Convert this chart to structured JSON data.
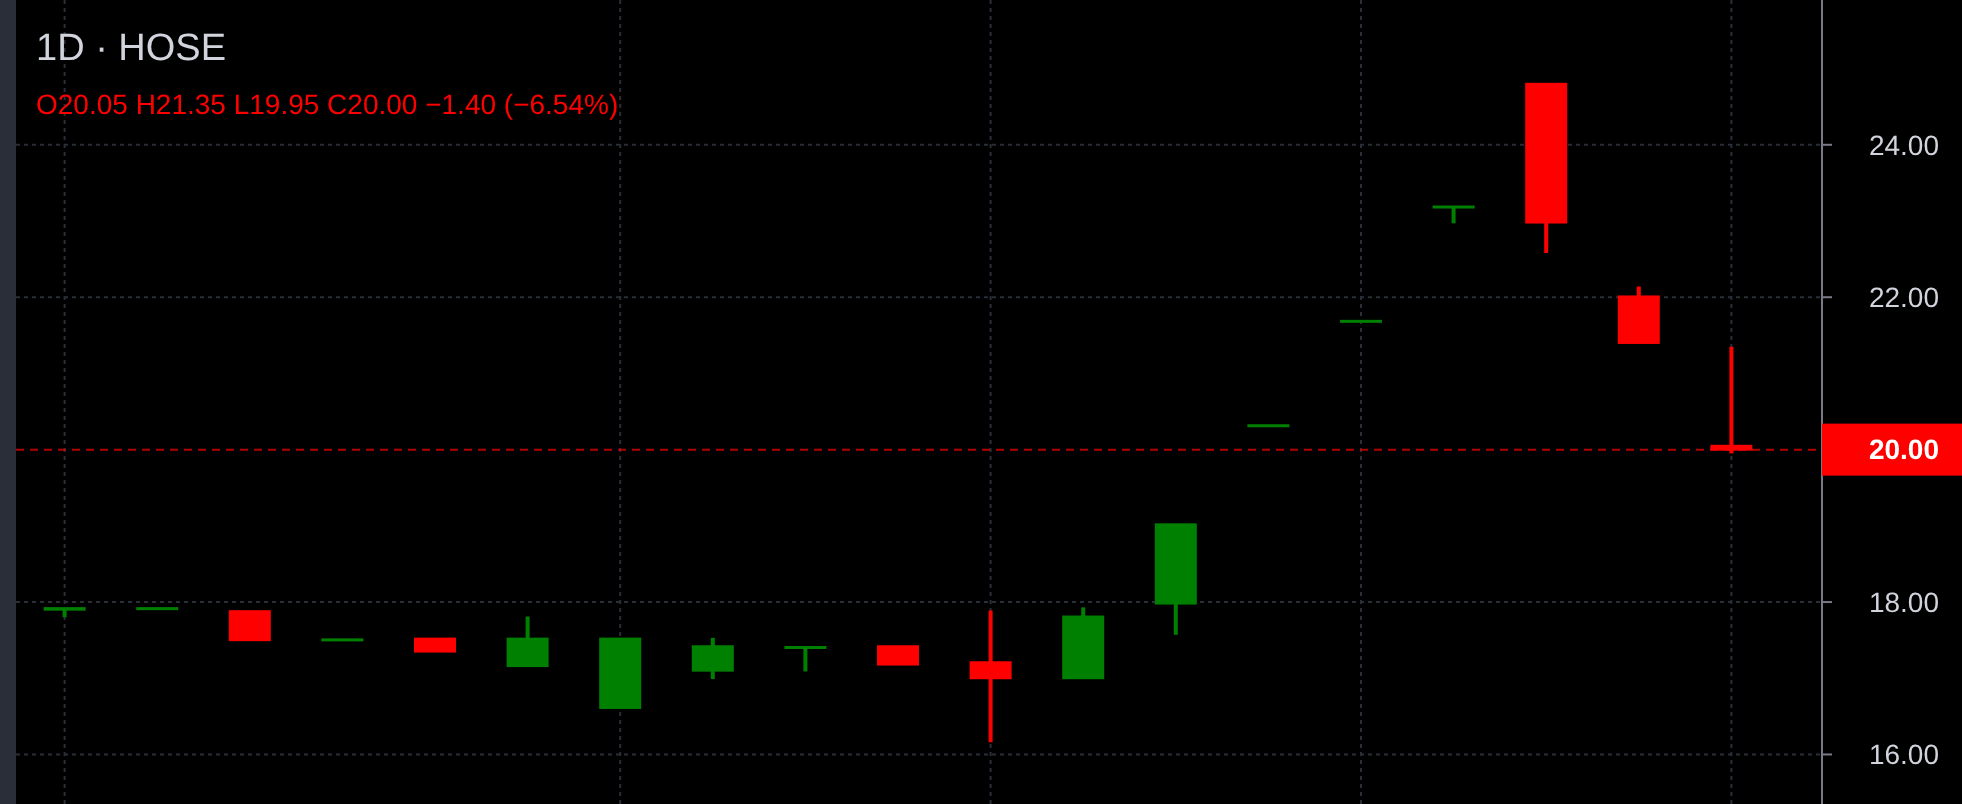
{
  "chart_data": {
    "type": "candlestick",
    "title": "1D · HOSE",
    "subtitle": "O20.05  H21.35  L19.95  C20.00  −1.40 (−6.54%)",
    "categories": [
      null,
      null,
      null,
      null,
      null,
      null,
      null,
      null,
      null,
      null,
      null,
      null,
      null,
      null,
      null,
      null,
      null,
      null,
      null
    ],
    "ohlc": [
      [
        17.9,
        17.92,
        17.8,
        17.92
      ],
      [
        17.92,
        17.92,
        17.92,
        17.92
      ],
      [
        17.88,
        17.88,
        17.5,
        17.5
      ],
      [
        17.51,
        17.51,
        17.51,
        17.51
      ],
      [
        17.52,
        17.52,
        17.35,
        17.35
      ],
      [
        17.16,
        17.81,
        17.16,
        17.52
      ],
      [
        16.61,
        17.52,
        16.61,
        17.52
      ],
      [
        17.1,
        17.53,
        16.99,
        17.42
      ],
      [
        17.4,
        17.41,
        17.09,
        17.41
      ],
      [
        17.42,
        17.42,
        17.18,
        17.18
      ],
      [
        17.21,
        17.89,
        16.16,
        17.0
      ],
      [
        17.0,
        17.93,
        17.0,
        17.81
      ],
      [
        17.98,
        19.02,
        17.57,
        19.02
      ],
      [
        20.32,
        20.32,
        20.32,
        20.32
      ],
      [
        21.69,
        21.69,
        21.69,
        21.69
      ],
      [
        23.18,
        23.19,
        22.97,
        23.19
      ],
      [
        24.8,
        24.8,
        22.58,
        22.98
      ],
      [
        22.01,
        22.14,
        21.4,
        21.4
      ],
      [
        20.05,
        21.35,
        19.95,
        20.0
      ]
    ],
    "colors": [
      "#008000",
      "#008000",
      "#ff0000",
      "#008000",
      "#ff0000",
      "#008000",
      "#008000",
      "#008000",
      "#008000",
      "#ff0000",
      "#ff0000",
      "#008000",
      "#008000",
      "#008000",
      "#008000",
      "#008000",
      "#ff0000",
      "#ff0000",
      "#ff0000"
    ],
    "ylim": [
      15.35,
      25.9
    ],
    "yticks": [
      {
        "value": 16,
        "label": "16.00"
      },
      {
        "value": 18,
        "label": "18.00"
      },
      {
        "value": 22,
        "label": "22.00"
      },
      {
        "value": 24,
        "label": "24.00"
      }
    ],
    "grid": true,
    "ref_lines": [
      {
        "axis": "y",
        "value": 20,
        "label": "20.00",
        "color": "#ff0000",
        "line_style": "dashed"
      }
    ]
  }
}
